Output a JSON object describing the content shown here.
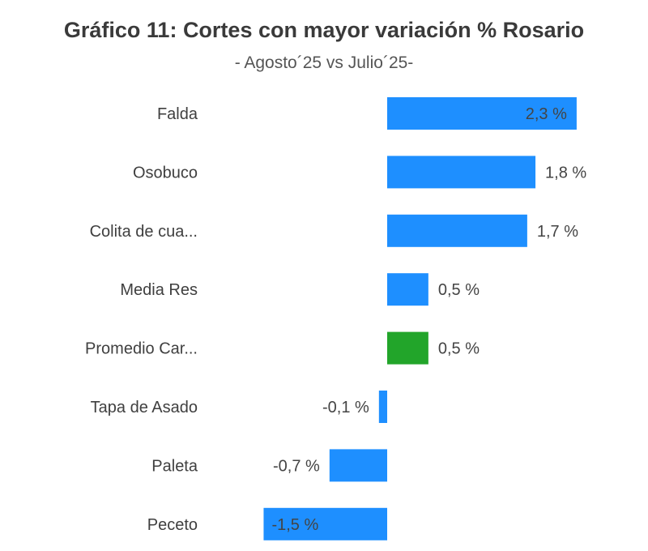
{
  "chart_data": {
    "type": "bar",
    "orientation": "horizontal",
    "title": "Gráfico 11: Cortes con mayor variación % Rosario",
    "subtitle": "- Agosto´25 vs Julio´25-",
    "categories": [
      "Falda",
      "Osobuco",
      "Colita de cua...",
      "Media Res",
      "Promedio Car...",
      "Tapa de Asado",
      "Paleta",
      "Peceto"
    ],
    "values": [
      2.3,
      1.8,
      1.7,
      0.5,
      0.5,
      -0.1,
      -0.7,
      -1.5
    ],
    "value_labels": [
      "2,3 %",
      "1,8 %",
      "1,7 %",
      "0,5 %",
      "0,5 %",
      "-0,1 %",
      "-0,7 %",
      "-1,5 %"
    ],
    "label_inside": [
      true,
      false,
      false,
      false,
      false,
      false,
      false,
      true
    ],
    "colors": [
      "#1e8fff",
      "#1e8fff",
      "#1e8fff",
      "#1e8fff",
      "#22a52a",
      "#1e8fff",
      "#1e8fff",
      "#1e8fff"
    ],
    "xlim": [
      -1.5,
      2.3
    ],
    "grid": false,
    "legend": "none"
  }
}
